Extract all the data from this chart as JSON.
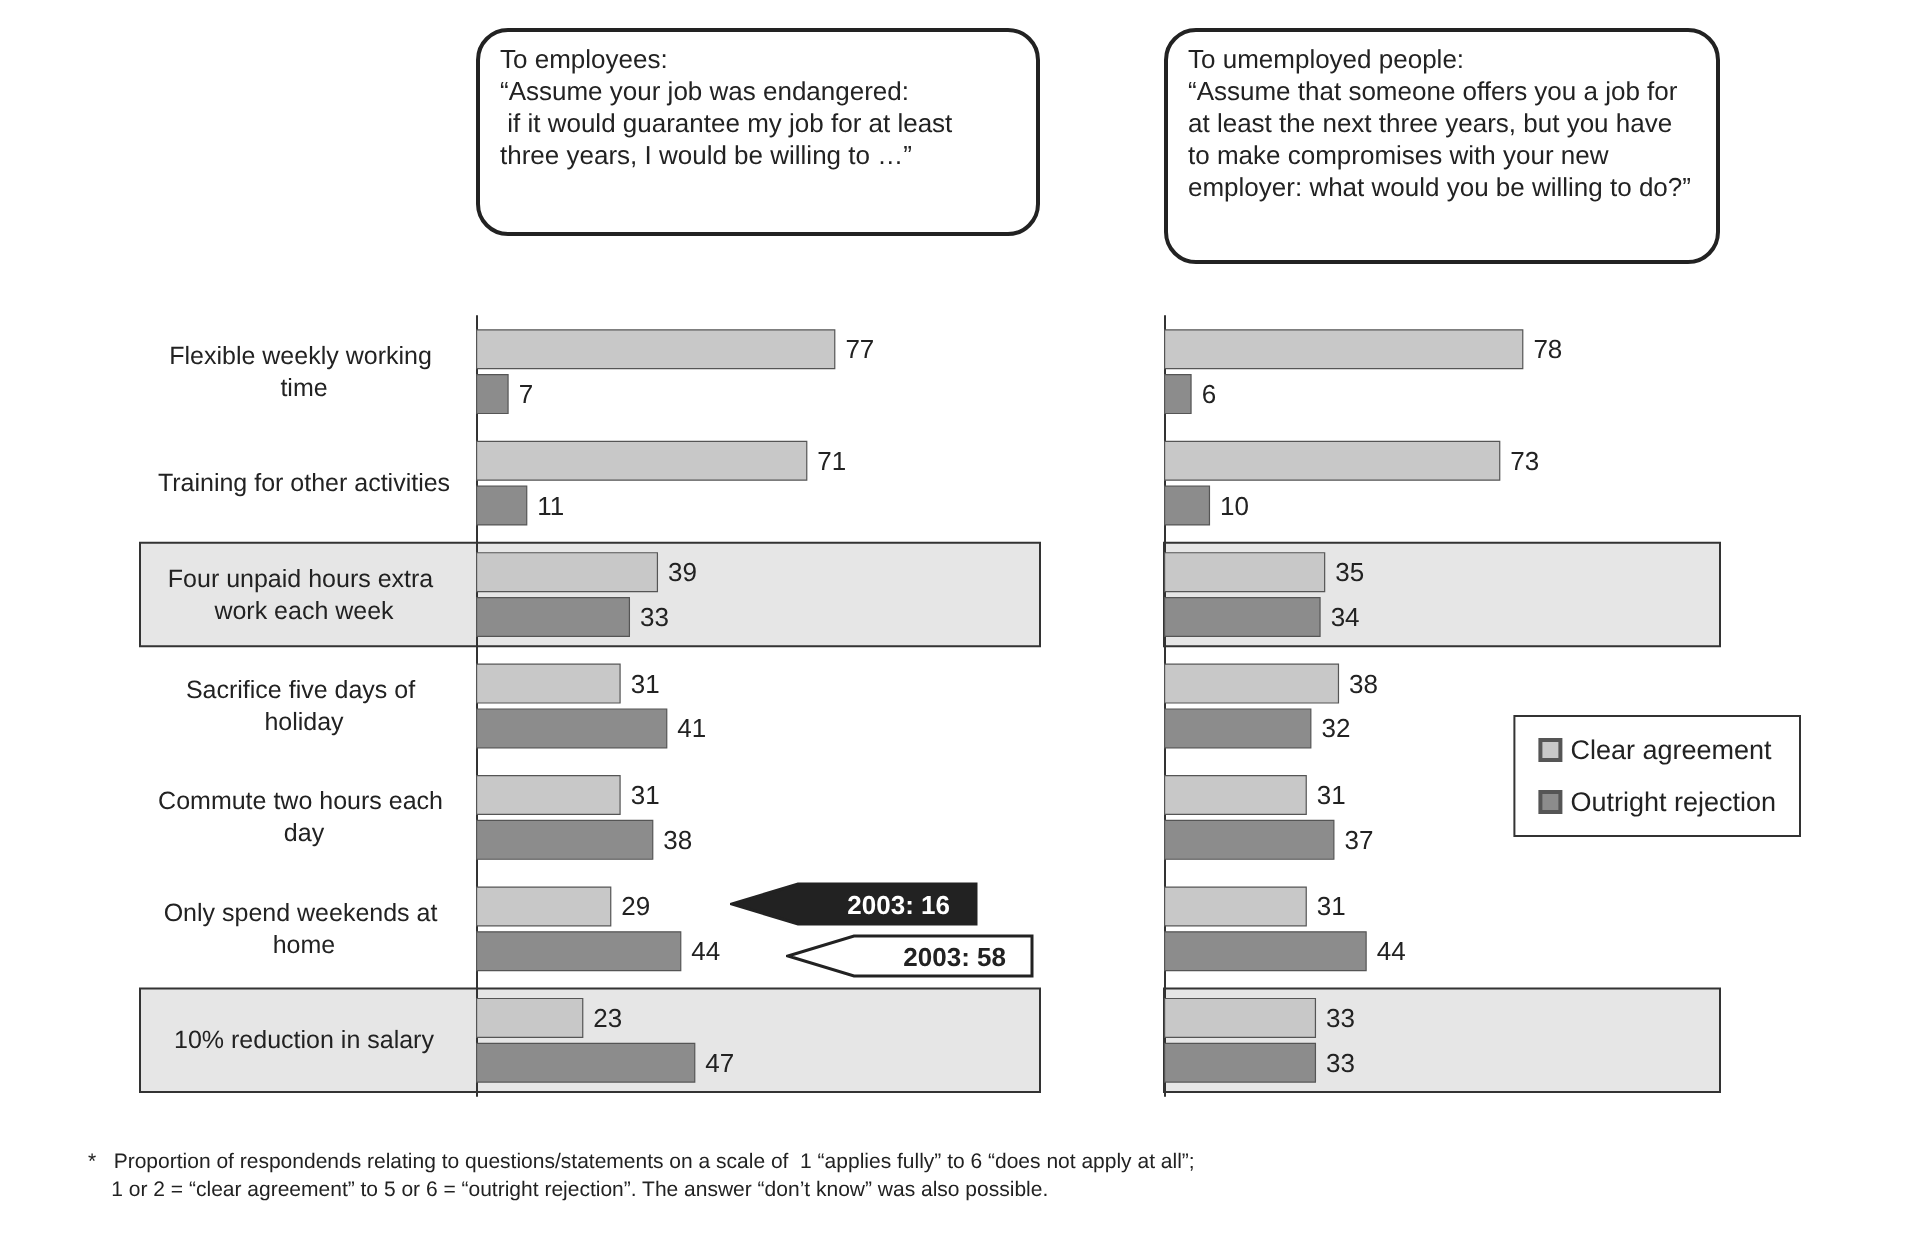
{
  "chart_data": [
    {
      "type": "bar",
      "orientation": "horizontal",
      "title": "To employees:",
      "subtitle": "“Assume your job was endangered:\n if it would guarantee my job for at least\nthree years, I would be willing to …”",
      "categories": [
        "Flexible weekly working time",
        "Training for other activities",
        "Four unpaid hours extra work each week",
        "Sacrifice five days of holiday",
        "Commute two hours each day",
        "Only spend weekends at home",
        "10% reduction in salary"
      ],
      "series": [
        {
          "color": "#c8c8c8",
          "values": [
            77,
            71,
            39,
            31,
            31,
            29,
            23
          ]
        },
        {
          "color": "#8c8c8c",
          "values": [
            7,
            11,
            33,
            41,
            38,
            44,
            47
          ]
        }
      ],
      "tick_labels": "y",
      "data_labels": true,
      "legend": false,
      "bands": [
        {
          "axis": "y",
          "from": "Four unpaid hours extra work each week",
          "to": "Four unpaid hours extra work each week",
          "color": "#e6e6e6"
        },
        {
          "axis": "y",
          "from": "10% reduction in salary",
          "to": "10% reduction in salary",
          "color": "#e6e6e6"
        }
      ],
      "annotations": [
        "2003: 16",
        "2003: 58"
      ]
    },
    {
      "type": "bar",
      "orientation": "horizontal",
      "title": "To umemployed people:",
      "subtitle": "“Assume that someone offers you a job for\nat least the next three years, but you have\nto make compromises with your new\nemployer: what would you be willing to do?”",
      "categories": [
        "Flexible weekly working time",
        "Training for other activities",
        "Four unpaid hours extra work each week",
        "Sacrifice five days of holiday",
        "Commute two hours each day",
        "Only spend weekends at home",
        "10% reduction in salary"
      ],
      "series": [
        {
          "name": "Clear agreement",
          "color": "#c8c8c8",
          "values": [
            78,
            73,
            35,
            38,
            31,
            31,
            33
          ]
        },
        {
          "name": "Outright rejection",
          "color": "#8c8c8c",
          "values": [
            6,
            10,
            34,
            32,
            37,
            44,
            33
          ]
        }
      ],
      "tick_labels": false,
      "data_labels": true,
      "legend": "right",
      "bands": [
        {
          "axis": "y",
          "from": "Four unpaid hours extra work each week",
          "to": "Four unpaid hours extra work each week",
          "color": "#e6e6e6"
        },
        {
          "axis": "y",
          "from": "10% reduction in salary",
          "to": "10% reduction in salary",
          "color": "#e6e6e6"
        }
      ],
      "annotations": [
        "*   Proportion of respondends relating to questions/statements on a scale of  1 “applies fully” to 6 “does not apply at all”;\n    1 or 2 = “clear agreement” to 5 or 6 = “outright rejection”. The answer “don’t know” was also possible."
      ]
    }
  ]
}
